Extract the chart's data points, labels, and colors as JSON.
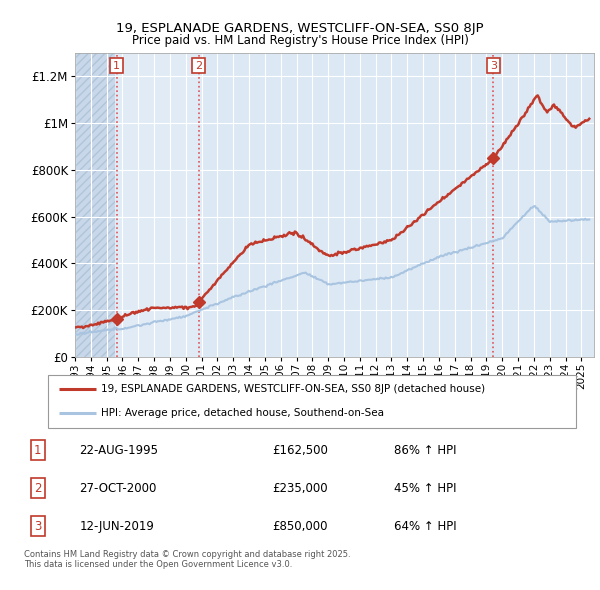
{
  "title": "19, ESPLANADE GARDENS, WESTCLIFF-ON-SEA, SS0 8JP",
  "subtitle": "Price paid vs. HM Land Registry's House Price Index (HPI)",
  "purchases": [
    {
      "date": 1995.64,
      "price": 162500,
      "label": "1"
    },
    {
      "date": 2000.82,
      "price": 235000,
      "label": "2"
    },
    {
      "date": 2019.44,
      "price": 850000,
      "label": "3"
    }
  ],
  "legend_line1": "19, ESPLANADE GARDENS, WESTCLIFF-ON-SEA, SS0 8JP (detached house)",
  "legend_line2": "HPI: Average price, detached house, Southend-on-Sea",
  "table": [
    {
      "num": "1",
      "date": "22-AUG-1995",
      "price": "£162,500",
      "change": "86% ↑ HPI"
    },
    {
      "num": "2",
      "date": "27-OCT-2000",
      "price": "£235,000",
      "change": "45% ↑ HPI"
    },
    {
      "num": "3",
      "date": "12-JUN-2019",
      "price": "£850,000",
      "change": "64% ↑ HPI"
    }
  ],
  "footer": "Contains HM Land Registry data © Crown copyright and database right 2025.\nThis data is licensed under the Open Government Licence v3.0.",
  "hpi_color": "#a8c4e0",
  "price_color": "#c0392b",
  "background_plot": "#dce8f4",
  "ylim": [
    0,
    1300000
  ],
  "yticks": [
    0,
    200000,
    400000,
    600000,
    800000,
    1000000,
    1200000
  ],
  "ytick_labels": [
    "£0",
    "£200K",
    "£400K",
    "£600K",
    "£800K",
    "£1M",
    "£1.2M"
  ],
  "xmin": 1993.0,
  "xmax": 2025.8
}
